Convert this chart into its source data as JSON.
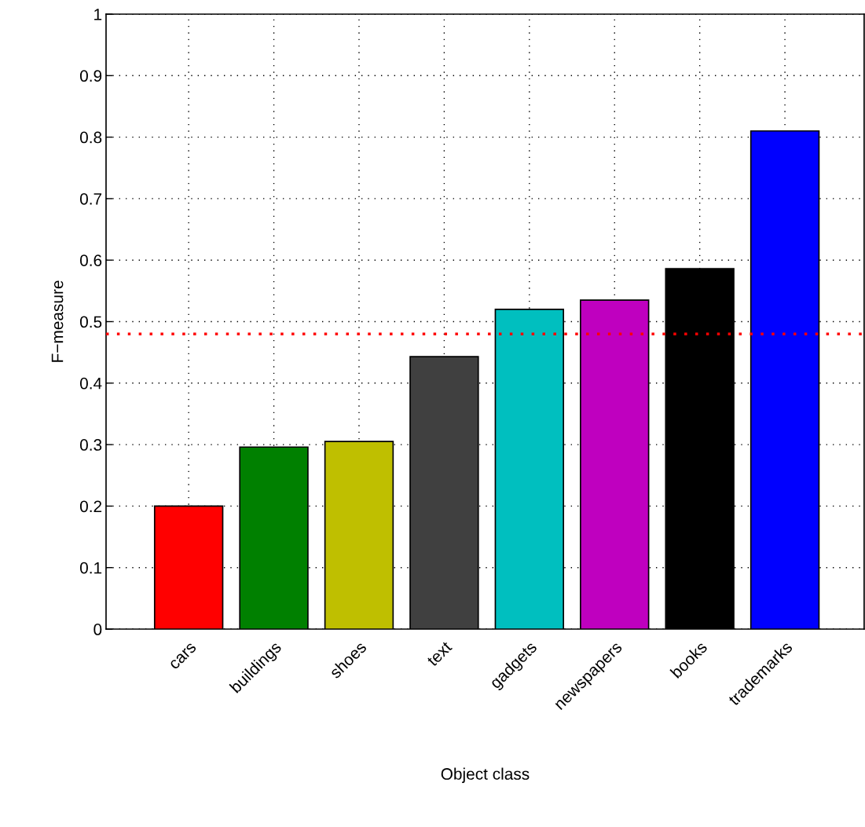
{
  "chart_data": {
    "type": "bar",
    "xlabel": "Object class",
    "ylabel": "F−measure",
    "categories": [
      "cars",
      "buildings",
      "shoes",
      "text",
      "gadgets",
      "newspapers",
      "books",
      "trademarks"
    ],
    "values": [
      0.2,
      0.296,
      0.305,
      0.443,
      0.52,
      0.535,
      0.586,
      0.81
    ],
    "colors": [
      "#ff0000",
      "#008000",
      "#bfbf00",
      "#404040",
      "#00bfbf",
      "#bf00bf",
      "#000000",
      "#0000ff"
    ],
    "ylim": [
      0,
      1
    ],
    "yticks": [
      0,
      0.1,
      0.2,
      0.3,
      0.4,
      0.5,
      0.6,
      0.7,
      0.8,
      0.9,
      1
    ],
    "ref_lines": [
      {
        "axis": "y",
        "value": 0.48,
        "color": "#ff0000",
        "line_style": "dotted"
      }
    ],
    "grid": true,
    "legend": false
  }
}
